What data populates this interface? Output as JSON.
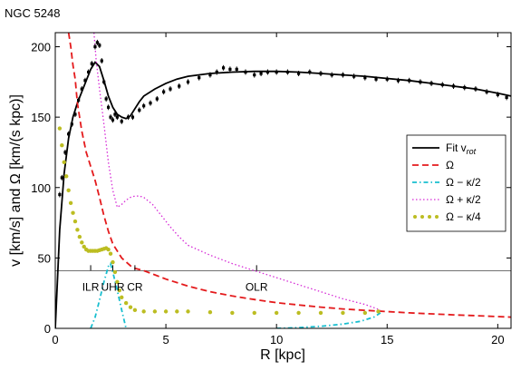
{
  "chart_data": {
    "type": "line",
    "title": "NGC 5248",
    "xlabel": "R [kpc]",
    "ylabel": "v [km/s] and Ω [km/(s kpc)]",
    "xlim": [
      0,
      20.6
    ],
    "ylim": [
      0,
      210
    ],
    "xticks": [
      0,
      5,
      10,
      15,
      20
    ],
    "yticks": [
      0,
      50,
      100,
      150,
      200
    ],
    "legend_position": "right",
    "pattern_speed_line": 41,
    "resonances": [
      {
        "label": "ILR",
        "x": 1.6
      },
      {
        "label": "UHR",
        "x": 2.6
      },
      {
        "label": "CR",
        "x": 3.6
      },
      {
        "label": "OLR",
        "x": 9.1
      }
    ],
    "observed": {
      "x": [
        0.2,
        0.3,
        0.45,
        0.6,
        0.75,
        0.9,
        1.05,
        1.2,
        1.35,
        1.5,
        1.65,
        1.8,
        1.9,
        2.0,
        2.1,
        2.2,
        2.3,
        2.4,
        2.5,
        2.6,
        2.7,
        2.8,
        3.0,
        3.3,
        3.5,
        3.8,
        4.0,
        4.3,
        4.6,
        4.9,
        5.2,
        5.6,
        6.0,
        6.5,
        7.0,
        7.3,
        7.6,
        7.9,
        8.2,
        8.6,
        9.0,
        9.3,
        9.6,
        10.0,
        10.5,
        11.0,
        11.5,
        12.0,
        12.5,
        13.0,
        13.5,
        14.0,
        14.5,
        15.0,
        15.5,
        16.0,
        16.5,
        17.0,
        17.5,
        18.0,
        18.5,
        19.0,
        19.5,
        20.0,
        20.4
      ],
      "y": [
        95,
        107,
        125,
        138,
        145,
        152,
        162,
        170,
        176,
        182,
        188,
        200,
        203,
        201,
        190,
        175,
        163,
        157,
        150,
        148,
        152,
        150,
        147,
        150,
        150,
        155,
        158,
        160,
        163,
        168,
        170,
        172,
        175,
        178,
        180,
        182,
        185,
        184,
        184,
        182,
        180,
        181,
        182,
        182,
        182,
        181,
        182,
        181,
        180,
        180,
        179,
        178,
        177,
        177,
        176,
        176,
        175,
        174,
        173,
        172,
        171,
        170,
        168,
        166,
        164
      ]
    },
    "series": [
      {
        "name": "Fit v_rot",
        "style": "solid",
        "color": "#000000",
        "x": [
          0,
          0.2,
          0.4,
          0.6,
          0.8,
          1.0,
          1.2,
          1.4,
          1.6,
          1.8,
          2.0,
          2.2,
          2.4,
          2.6,
          2.8,
          3.0,
          3.2,
          3.4,
          3.6,
          3.8,
          4.0,
          4.5,
          5.0,
          5.5,
          6.0,
          7.0,
          8.0,
          9.0,
          10.0,
          11.0,
          12.0,
          13.0,
          14.0,
          15.0,
          16.0,
          17.0,
          18.0,
          19.0,
          20.0,
          20.6
        ],
        "y": [
          0,
          70,
          110,
          135,
          150,
          160,
          168,
          176,
          184,
          189,
          186,
          176,
          165,
          157,
          152,
          150,
          149,
          151,
          156,
          161,
          165,
          170,
          174,
          177,
          179,
          181,
          182,
          182.5,
          182.5,
          182,
          181,
          180,
          179,
          177.5,
          176,
          174,
          172,
          170,
          167,
          165
        ]
      },
      {
        "name": "Ω",
        "style": "dashed",
        "color": "#e41a1c",
        "x": [
          0.6,
          0.7,
          0.8,
          0.9,
          1.0,
          1.2,
          1.4,
          1.6,
          1.8,
          2.0,
          2.2,
          2.4,
          2.6,
          3.0,
          3.5,
          4.0,
          4.5,
          5.0,
          6.0,
          7.0,
          8.0,
          9.0,
          10.0,
          11.0,
          12.0,
          13.0,
          14.0,
          15.0,
          16.0,
          17.0,
          18.0,
          19.0,
          20.0,
          20.6
        ],
        "y": [
          210,
          200,
          187,
          177,
          160,
          140,
          125,
          115,
          105,
          93,
          80,
          69,
          60,
          50,
          43,
          41,
          38,
          35,
          30,
          26,
          23,
          20.5,
          18.2,
          16.6,
          15.1,
          13.8,
          12.8,
          11.9,
          11.0,
          10.3,
          9.6,
          9.0,
          8.4,
          8.0
        ]
      },
      {
        "name": "Ω − κ/2",
        "style": "dashdot",
        "color": "#17becf",
        "x": [
          1.6,
          1.8,
          2.0,
          2.2,
          2.4,
          2.5,
          2.6,
          2.8,
          3.0,
          3.2
        ],
        "y": [
          0,
          8,
          20,
          33,
          44,
          46,
          40,
          27,
          13,
          0
        ],
        "x2": [
          10.0,
          11.0,
          12.0,
          13.0,
          13.8,
          14.4,
          14.7
        ],
        "y2": [
          0,
          0.5,
          1.5,
          3,
          5,
          8,
          11
        ]
      },
      {
        "name": "Ω + κ/2",
        "style": "dotted",
        "color": "#d62ad6",
        "x": [
          1.75,
          1.85,
          2.0,
          2.2,
          2.4,
          2.6,
          2.8,
          3.0,
          3.2,
          3.4,
          3.6,
          3.8,
          4.0,
          4.4,
          4.8,
          5.2,
          5.6,
          6.0,
          7.0,
          8.0,
          9.0,
          10.0,
          11.0,
          12.0,
          13.0,
          14.0,
          14.7
        ],
        "y": [
          210,
          190,
          170,
          145,
          118,
          98,
          86,
          88,
          91,
          93,
          94,
          94,
          93,
          88,
          80,
          72,
          65,
          59,
          52,
          46,
          41,
          36,
          31,
          26,
          21,
          17,
          13
        ]
      },
      {
        "name": "Ω − κ/4",
        "style": "dots",
        "color": "#bcbd22",
        "x": [
          0.2,
          0.3,
          0.4,
          0.5,
          0.6,
          0.7,
          0.8,
          0.9,
          1.0,
          1.1,
          1.2,
          1.3,
          1.4,
          1.5,
          1.6,
          1.7,
          1.8,
          1.9,
          2.0,
          2.1,
          2.2,
          2.3,
          2.4,
          2.5,
          2.6,
          2.7,
          2.8,
          2.9,
          3.0,
          3.2,
          3.4,
          3.6,
          4.0,
          4.5,
          5.0,
          5.5,
          6.0,
          7.0,
          8.0,
          9.0,
          10.0,
          11.0,
          12.0,
          13.0,
          14.0,
          14.6
        ],
        "y": [
          142,
          130,
          118,
          108,
          98,
          89,
          82,
          76,
          70,
          65,
          61,
          58,
          56,
          55,
          55,
          55,
          55,
          55,
          55.5,
          56,
          56.5,
          57,
          56,
          53,
          47,
          40,
          33,
          27,
          22,
          18,
          15,
          13,
          12,
          12,
          12,
          12,
          12,
          11.5,
          11,
          11,
          11,
          11,
          11,
          11,
          11,
          12
        ]
      }
    ],
    "legend": [
      {
        "label": "Fit v",
        "sub": "rot",
        "color": "#000000",
        "style": "solid"
      },
      {
        "label": "Ω",
        "color": "#e41a1c",
        "style": "dashed"
      },
      {
        "label": "Ω − κ/2",
        "color": "#17becf",
        "style": "dashdot"
      },
      {
        "label": "Ω + κ/2",
        "color": "#d62ad6",
        "style": "dotted"
      },
      {
        "label": "Ω − κ/4",
        "color": "#bcbd22",
        "style": "dots"
      }
    ]
  }
}
